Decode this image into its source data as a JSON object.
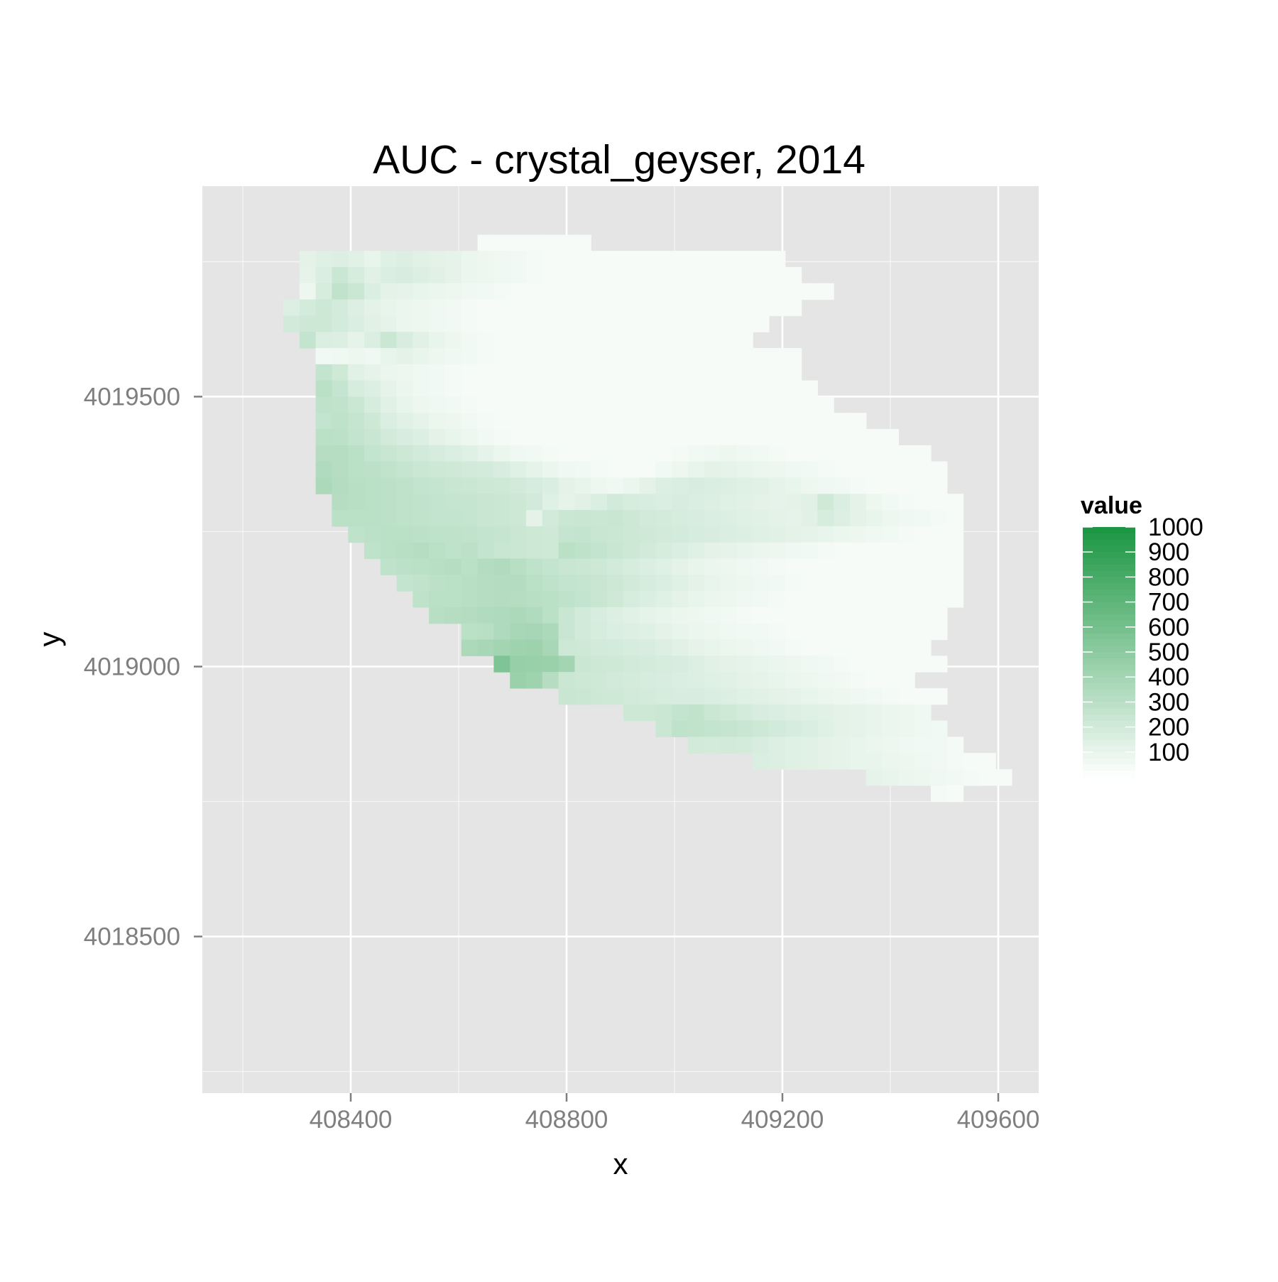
{
  "chart_data": {
    "type": "heatmap",
    "title": "AUC - crystal_geyser, 2014",
    "xlabel": "x",
    "ylabel": "y",
    "x_ticks": [
      408400,
      408800,
      409200,
      409600
    ],
    "y_ticks": [
      4018500,
      4019000,
      4019500
    ],
    "xlim": [
      408125,
      409675
    ],
    "ylim": [
      4018210,
      4019890
    ],
    "grid": true,
    "panel_background": "#e5e5e5",
    "grid_color": "#ffffff",
    "color_scale": {
      "low": "#ffffff",
      "high": "#1a9641",
      "range": [
        0,
        1000
      ]
    },
    "legend": {
      "title": "value",
      "position": "right",
      "breaks": [
        1000,
        900,
        800,
        700,
        600,
        500,
        400,
        300,
        200,
        100
      ]
    },
    "cell_size": 30,
    "grid_origin": {
      "x0": 408230,
      "y_top": 4019785
    },
    "rows": [
      {
        "y": 4019785,
        "x_start": 408650,
        "values": [
          40,
          40,
          40,
          40,
          40,
          40,
          40
        ]
      },
      {
        "y": 4019755,
        "x_start": 408320,
        "values": [
          120,
          140,
          150,
          130,
          100,
          140,
          150,
          130,
          120,
          110,
          90,
          80,
          70,
          60,
          50,
          40,
          40,
          40,
          40,
          40,
          40,
          40,
          40,
          40,
          40,
          40,
          40,
          40,
          40,
          40
        ]
      },
      {
        "y": 4019725,
        "x_start": 408320,
        "values": [
          110,
          160,
          230,
          180,
          130,
          160,
          170,
          150,
          130,
          110,
          90,
          80,
          70,
          60,
          50,
          40,
          40,
          40,
          40,
          40,
          40,
          40,
          40,
          40,
          40,
          40,
          40,
          40,
          40,
          40,
          40
        ]
      },
      {
        "y": 4019695,
        "x_start": 408320,
        "values": [
          80,
          180,
          270,
          230,
          160,
          120,
          110,
          100,
          90,
          80,
          70,
          60,
          50,
          40,
          40,
          40,
          40,
          40,
          40,
          40,
          40,
          40,
          40,
          40,
          40,
          40,
          40,
          40,
          40,
          40,
          40,
          40,
          40
        ]
      },
      {
        "y": 4019665,
        "x_start": 408290,
        "values": [
          150,
          190,
          220,
          190,
          150,
          120,
          100,
          90,
          80,
          70,
          60,
          50,
          40,
          40,
          40,
          40,
          40,
          40,
          40,
          40,
          40,
          40,
          40,
          40,
          40,
          40,
          40,
          40,
          40,
          40,
          40,
          40
        ]
      },
      {
        "y": 4019635,
        "x_start": 408290,
        "values": [
          200,
          220,
          220,
          190,
          160,
          130,
          110,
          90,
          80,
          70,
          60,
          50,
          40,
          40,
          40,
          40,
          40,
          40,
          40,
          40,
          40,
          40,
          40,
          40,
          40,
          40,
          40,
          40,
          40,
          40
        ]
      },
      {
        "y": 4019605,
        "x_start": 408320,
        "values": [
          260,
          160,
          150,
          110,
          160,
          230,
          170,
          130,
          100,
          80,
          60,
          50,
          40,
          40,
          40,
          40,
          40,
          40,
          40,
          40,
          40,
          40,
          40,
          40,
          40,
          40,
          40,
          40
        ]
      },
      {
        "y": 4019575,
        "x_start": 408350,
        "values": [
          60,
          70,
          80,
          70,
          100,
          120,
          100,
          80,
          70,
          60,
          50,
          40,
          40,
          40,
          40,
          40,
          40,
          40,
          40,
          40,
          40,
          40,
          40,
          40,
          40,
          40,
          40,
          40,
          40,
          40
        ]
      },
      {
        "y": 4019545,
        "x_start": 408350,
        "values": [
          260,
          210,
          130,
          110,
          90,
          80,
          70,
          60,
          50,
          40,
          40,
          40,
          40,
          40,
          40,
          40,
          40,
          40,
          40,
          40,
          40,
          40,
          40,
          40,
          40,
          40,
          40,
          40,
          40,
          40
        ]
      },
      {
        "y": 4019515,
        "x_start": 408350,
        "values": [
          300,
          250,
          180,
          150,
          110,
          90,
          70,
          60,
          50,
          40,
          40,
          40,
          40,
          40,
          40,
          40,
          40,
          40,
          40,
          40,
          40,
          40,
          40,
          40,
          40,
          40,
          40,
          40,
          40,
          40,
          40
        ]
      },
      {
        "y": 4019485,
        "x_start": 408350,
        "values": [
          280,
          270,
          230,
          180,
          130,
          100,
          80,
          70,
          60,
          50,
          40,
          40,
          40,
          40,
          40,
          40,
          40,
          40,
          40,
          40,
          40,
          40,
          40,
          40,
          40,
          40,
          40,
          40,
          40,
          40,
          40,
          40
        ]
      },
      {
        "y": 4019455,
        "x_start": 408350,
        "values": [
          260,
          280,
          250,
          220,
          160,
          130,
          110,
          90,
          80,
          60,
          50,
          40,
          40,
          40,
          40,
          40,
          40,
          40,
          40,
          40,
          40,
          40,
          40,
          40,
          40,
          40,
          40,
          40,
          40,
          40,
          40,
          40,
          40,
          40
        ]
      },
      {
        "y": 4019425,
        "x_start": 408350,
        "values": [
          300,
          290,
          260,
          240,
          200,
          170,
          150,
          120,
          100,
          80,
          60,
          50,
          40,
          40,
          40,
          40,
          40,
          40,
          40,
          40,
          40,
          40,
          40,
          40,
          40,
          40,
          40,
          40,
          40,
          40,
          40,
          40,
          40,
          40,
          40,
          40
        ]
      },
      {
        "y": 4019395,
        "x_start": 408350,
        "values": [
          320,
          320,
          300,
          260,
          240,
          220,
          200,
          180,
          160,
          140,
          110,
          90,
          70,
          60,
          50,
          40,
          40,
          40,
          40,
          40,
          40,
          40,
          50,
          60,
          70,
          80,
          70,
          60,
          50,
          40,
          40,
          40,
          40,
          40,
          40,
          40,
          40,
          40
        ]
      },
      {
        "y": 4019365,
        "x_start": 408350,
        "values": [
          340,
          320,
          300,
          290,
          270,
          250,
          230,
          220,
          210,
          200,
          190,
          170,
          140,
          110,
          90,
          70,
          60,
          50,
          40,
          40,
          40,
          60,
          80,
          100,
          120,
          110,
          100,
          90,
          80,
          70,
          60,
          50,
          40,
          40,
          40,
          40,
          40,
          40,
          40
        ]
      },
      {
        "y": 4019335,
        "x_start": 408350,
        "values": [
          360,
          330,
          310,
          300,
          290,
          280,
          260,
          250,
          240,
          230,
          220,
          210,
          200,
          180,
          160,
          120,
          100,
          80,
          70,
          90,
          120,
          150,
          160,
          170,
          160,
          150,
          140,
          130,
          110,
          100,
          80,
          70,
          60,
          50,
          40,
          40,
          40,
          40,
          40
        ]
      },
      {
        "y": 4019305,
        "x_start": 408380,
        "values": [
          320,
          310,
          300,
          290,
          280,
          270,
          260,
          250,
          250,
          240,
          230,
          220,
          200,
          140,
          110,
          130,
          160,
          200,
          180,
          170,
          160,
          170,
          160,
          150,
          140,
          130,
          120,
          110,
          120,
          130,
          210,
          160,
          120,
          80,
          60,
          50,
          40,
          40,
          40
        ]
      },
      {
        "y": 4019275,
        "x_start": 408380,
        "values": [
          300,
          300,
          300,
          290,
          280,
          270,
          260,
          260,
          250,
          240,
          230,
          220,
          120,
          200,
          230,
          240,
          230,
          240,
          220,
          200,
          190,
          180,
          170,
          160,
          150,
          140,
          130,
          120,
          110,
          130,
          180,
          150,
          120,
          100,
          80,
          70,
          60,
          50,
          40
        ]
      },
      {
        "y": 4019245,
        "x_start": 408410,
        "values": [
          280,
          290,
          300,
          300,
          290,
          280,
          280,
          270,
          260,
          250,
          230,
          220,
          210,
          250,
          260,
          240,
          230,
          220,
          210,
          200,
          190,
          180,
          170,
          160,
          150,
          140,
          130,
          120,
          110,
          100,
          90,
          80,
          70,
          60,
          50,
          40,
          40,
          40
        ]
      },
      {
        "y": 4019215,
        "x_start": 408440,
        "values": [
          280,
          300,
          310,
          320,
          300,
          280,
          290,
          260,
          240,
          230,
          220,
          210,
          300,
          280,
          260,
          240,
          220,
          200,
          180,
          160,
          140,
          120,
          110,
          100,
          90,
          80,
          70,
          60,
          50,
          40,
          40,
          40,
          40,
          40,
          40,
          40,
          40
        ]
      },
      {
        "y": 4019185,
        "x_start": 408470,
        "values": [
          280,
          290,
          300,
          310,
          320,
          300,
          330,
          340,
          310,
          280,
          260,
          240,
          230,
          220,
          200,
          180,
          160,
          140,
          120,
          100,
          90,
          80,
          70,
          60,
          50,
          40,
          40,
          40,
          40,
          40,
          40,
          40,
          40,
          40,
          40,
          40
        ]
      },
      {
        "y": 4019155,
        "x_start": 408500,
        "values": [
          260,
          270,
          290,
          300,
          310,
          320,
          330,
          330,
          300,
          280,
          260,
          250,
          240,
          220,
          200,
          180,
          160,
          140,
          120,
          100,
          90,
          80,
          70,
          60,
          50,
          40,
          40,
          40,
          40,
          40,
          40,
          40,
          40,
          40,
          40
        ]
      },
      {
        "y": 4019125,
        "x_start": 408530,
        "values": [
          280,
          300,
          300,
          310,
          320,
          330,
          320,
          310,
          300,
          280,
          260,
          240,
          210,
          180,
          160,
          140,
          120,
          100,
          90,
          80,
          70,
          60,
          50,
          40,
          40,
          40,
          40,
          40,
          40,
          40,
          40,
          40,
          40,
          40
        ]
      },
      {
        "y": 4019095,
        "x_start": 408560,
        "values": [
          310,
          320,
          330,
          340,
          350,
          360,
          340,
          300,
          240,
          200,
          170,
          150,
          130,
          110,
          100,
          90,
          80,
          70,
          60,
          50,
          40,
          40,
          40,
          40,
          40,
          40,
          40,
          40,
          40,
          40,
          40,
          40
        ]
      },
      {
        "y": 4019065,
        "x_start": 408620,
        "values": [
          300,
          310,
          350,
          380,
          390,
          360,
          240,
          200,
          180,
          160,
          150,
          140,
          120,
          100,
          90,
          80,
          70,
          60,
          60,
          50,
          40,
          40,
          40,
          40,
          40,
          40,
          40,
          40,
          40,
          40
        ]
      },
      {
        "y": 4019035,
        "x_start": 408620,
        "values": [
          360,
          380,
          400,
          420,
          430,
          380,
          220,
          210,
          200,
          190,
          180,
          170,
          150,
          130,
          110,
          100,
          90,
          80,
          70,
          60,
          50,
          40,
          40,
          40,
          40,
          40,
          40,
          40,
          40
        ]
      },
      {
        "y": 4019005,
        "x_start": 408680,
        "values": [
          560,
          460,
          450,
          440,
          400,
          230,
          220,
          210,
          200,
          190,
          180,
          170,
          150,
          130,
          120,
          110,
          100,
          90,
          80,
          70,
          60,
          50,
          40,
          40,
          40,
          40,
          40,
          40
        ]
      },
      {
        "y": 4018975,
        "x_start": 408710,
        "values": [
          440,
          420,
          320,
          230,
          220,
          210,
          200,
          190,
          180,
          170,
          160,
          150,
          140,
          130,
          120,
          110,
          100,
          90,
          80,
          70,
          60,
          50,
          40,
          40,
          40
        ]
      },
      {
        "y": 4018945,
        "x_start": 408800,
        "values": [
          240,
          230,
          220,
          210,
          200,
          190,
          180,
          170,
          170,
          160,
          150,
          140,
          130,
          120,
          110,
          100,
          90,
          80,
          70,
          60,
          50,
          40,
          40,
          40
        ]
      },
      {
        "y": 4018915,
        "x_start": 408920,
        "values": [
          220,
          220,
          230,
          260,
          270,
          230,
          210,
          190,
          170,
          160,
          150,
          140,
          130,
          120,
          110,
          100,
          90,
          80,
          70
        ]
      },
      {
        "y": 4018885,
        "x_start": 408980,
        "values": [
          230,
          280,
          270,
          260,
          250,
          240,
          220,
          200,
          180,
          160,
          140,
          120,
          110,
          100,
          90,
          80,
          70,
          60
        ]
      },
      {
        "y": 4018855,
        "x_start": 409040,
        "values": [
          200,
          190,
          200,
          190,
          170,
          150,
          140,
          130,
          120,
          110,
          100,
          90,
          80,
          70,
          60,
          60,
          50
        ]
      },
      {
        "y": 4018825,
        "x_start": 409160,
        "values": [
          160,
          150,
          140,
          130,
          120,
          110,
          100,
          100,
          90,
          80,
          70,
          60,
          50,
          40,
          40
        ]
      },
      {
        "y": 4018795,
        "x_start": 409370,
        "values": [
          110,
          100,
          90,
          80,
          70,
          60,
          50,
          40,
          40
        ]
      },
      {
        "y": 4018765,
        "x_start": 409490,
        "values": [
          50,
          40
        ]
      }
    ]
  }
}
